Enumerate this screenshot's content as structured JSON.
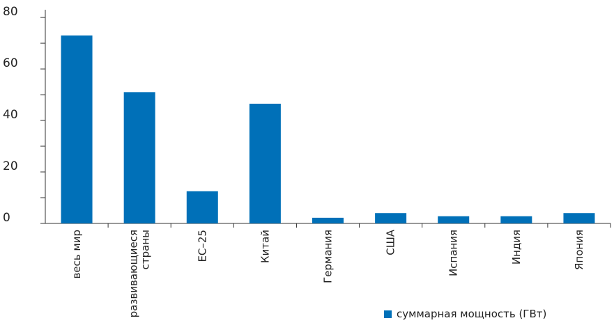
{
  "chart_data": {
    "type": "bar",
    "categories": [
      [
        "весь мир"
      ],
      [
        "развивающиеся",
        "страны"
      ],
      [
        "ЕС–25"
      ],
      [
        "Китай"
      ],
      [
        "Германия"
      ],
      [
        "США"
      ],
      [
        "Испания"
      ],
      [
        "Индия"
      ],
      [
        "Япония"
      ]
    ],
    "series": [
      {
        "name": "суммарная мощность (ГВт)",
        "values": [
          73,
          51,
          12.5,
          46.5,
          2.2,
          4,
          2.8,
          2.8,
          4
        ],
        "color": "#0070b8"
      }
    ],
    "yticks": [
      0,
      20,
      40,
      60,
      80
    ],
    "ylim": [
      0,
      83
    ],
    "grid": false,
    "legend_position": "bottom-right"
  }
}
